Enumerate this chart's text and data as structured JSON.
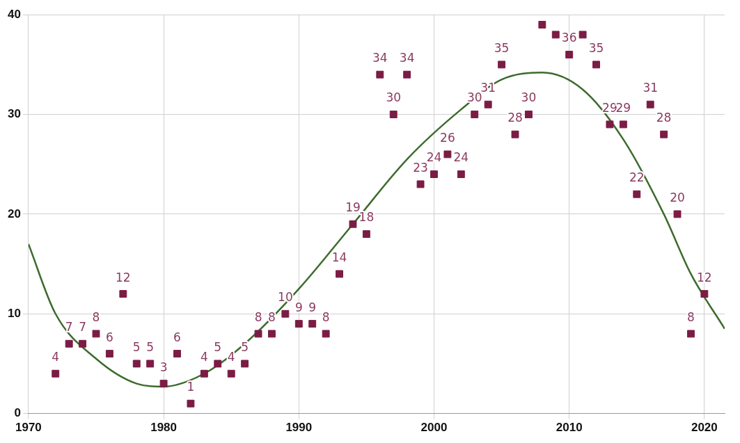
{
  "chart_data": {
    "type": "scatter",
    "xlim": [
      1970,
      2021.5
    ],
    "ylim": [
      0,
      40
    ],
    "xticks": [
      1970,
      1980,
      1990,
      2000,
      2010,
      2020
    ],
    "yticks": [
      0,
      10,
      20,
      30,
      40
    ],
    "grid": true,
    "series": [
      {
        "marker": "square",
        "color": "#7b1c44",
        "x": [
          1972,
          1973,
          1974,
          1975,
          1976,
          1977,
          1978,
          1979,
          1980,
          1981,
          1982,
          1983,
          1984,
          1985,
          1986,
          1987,
          1988,
          1989,
          1990,
          1991,
          1992,
          1993,
          1994,
          1995,
          1996,
          1997,
          1998,
          1999,
          2000,
          2001,
          2002,
          2003,
          2004,
          2005,
          2006,
          2007,
          2008,
          2009,
          2010,
          2011,
          2012,
          2013,
          2014,
          2015,
          2016,
          2017,
          2018,
          2019,
          2020
        ],
        "values": [
          4,
          7,
          7,
          8,
          6,
          12,
          5,
          5,
          3,
          6,
          1,
          4,
          5,
          4,
          5,
          8,
          8,
          10,
          9,
          9,
          8,
          14,
          19,
          18,
          34,
          30,
          34,
          23,
          24,
          26,
          24,
          30,
          31,
          35,
          28,
          30,
          39,
          38,
          36,
          38,
          35,
          29,
          29,
          22,
          31,
          28,
          20,
          8,
          12
        ],
        "value_labels": [
          "4",
          "7",
          "7",
          "8",
          "6",
          "12",
          "5",
          "5",
          "3",
          "6",
          "1",
          "4",
          "5",
          "4",
          "5",
          "8",
          "8",
          "10",
          "9",
          "9",
          "8",
          "14",
          "19",
          "18",
          "34",
          "30",
          "34",
          "23",
          "24",
          "26",
          "24",
          "30",
          "31",
          "35",
          "28",
          "30",
          null,
          null,
          "36",
          null,
          "35",
          "29",
          "29",
          "22",
          "31",
          "28",
          "20",
          "8",
          "12"
        ]
      },
      {
        "type": "line",
        "marker": "none",
        "color": "#3d6b2c",
        "x": [
          1970,
          1972,
          1975,
          1978,
          1980,
          1983,
          1986,
          1990,
          1994,
          1998,
          2002,
          2005,
          2008,
          2011,
          2014,
          2017,
          2019,
          2021.5
        ],
        "values": [
          17,
          10,
          5.5,
          3,
          2.7,
          4,
          7,
          12.5,
          19,
          25.5,
          30.5,
          33.5,
          34.2,
          32.5,
          27.5,
          20,
          14,
          8.5
        ]
      }
    ]
  }
}
